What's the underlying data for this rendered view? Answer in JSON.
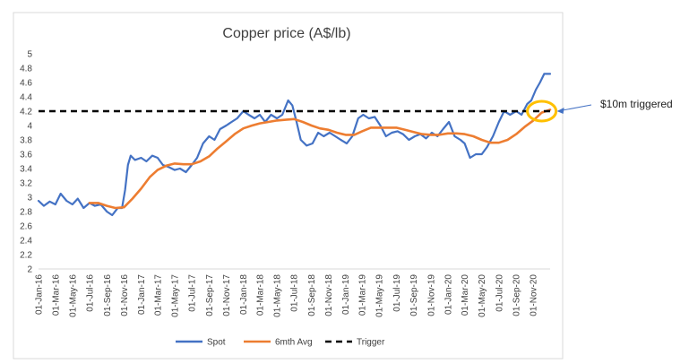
{
  "chart_data": {
    "type": "line",
    "title": "Copper price (A$/lb)",
    "xlabel": "",
    "ylabel": "",
    "ylim": [
      2,
      5
    ],
    "ytick_step": 0.2,
    "y_ticks": [
      "2",
      "2.2",
      "2.4",
      "2.6",
      "2.8",
      "3",
      "3.2",
      "3.4",
      "3.6",
      "3.8",
      "4",
      "4.2",
      "4.4",
      "4.6",
      "4.8",
      "5"
    ],
    "x_ticks": [
      "01-Jan-16",
      "01-Mar-16",
      "01-May-16",
      "01-Jul-16",
      "01-Sep-16",
      "01-Nov-16",
      "01-Jan-17",
      "01-Mar-17",
      "01-May-17",
      "01-Jul-17",
      "01-Sep-17",
      "01-Nov-17",
      "01-Jan-18",
      "01-Mar-18",
      "01-May-18",
      "01-Jul-18",
      "01-Sep-18",
      "01-Nov-18",
      "01-Jan-19",
      "01-Mar-19",
      "01-May-19",
      "01-Jul-19",
      "01-Sep-19",
      "01-Nov-19",
      "01-Jan-20",
      "01-Mar-20",
      "01-May-20",
      "01-Jul-20",
      "01-Sep-20",
      "01-Nov-20"
    ],
    "x_range": [
      "2016-01-01",
      "2020-12-31"
    ],
    "grid": false,
    "legend_position": "bottom",
    "series": [
      {
        "name": "Spot",
        "color": "#4472C4",
        "style": "solid",
        "points": [
          [
            "2016-01-01",
            2.95
          ],
          [
            "2016-01-20",
            2.88
          ],
          [
            "2016-02-10",
            2.94
          ],
          [
            "2016-03-01",
            2.9
          ],
          [
            "2016-03-20",
            3.05
          ],
          [
            "2016-04-10",
            2.95
          ],
          [
            "2016-05-01",
            2.9
          ],
          [
            "2016-05-20",
            2.98
          ],
          [
            "2016-06-10",
            2.85
          ],
          [
            "2016-07-01",
            2.92
          ],
          [
            "2016-07-20",
            2.88
          ],
          [
            "2016-08-10",
            2.9
          ],
          [
            "2016-09-01",
            2.8
          ],
          [
            "2016-09-20",
            2.75
          ],
          [
            "2016-10-10",
            2.85
          ],
          [
            "2016-10-25",
            2.85
          ],
          [
            "2016-11-05",
            3.1
          ],
          [
            "2016-11-15",
            3.45
          ],
          [
            "2016-11-25",
            3.58
          ],
          [
            "2016-12-10",
            3.52
          ],
          [
            "2017-01-01",
            3.55
          ],
          [
            "2017-01-20",
            3.5
          ],
          [
            "2017-02-10",
            3.58
          ],
          [
            "2017-03-01",
            3.55
          ],
          [
            "2017-03-20",
            3.45
          ],
          [
            "2017-04-10",
            3.42
          ],
          [
            "2017-05-01",
            3.38
          ],
          [
            "2017-05-20",
            3.4
          ],
          [
            "2017-06-10",
            3.35
          ],
          [
            "2017-07-01",
            3.45
          ],
          [
            "2017-07-20",
            3.55
          ],
          [
            "2017-08-10",
            3.75
          ],
          [
            "2017-09-01",
            3.85
          ],
          [
            "2017-09-20",
            3.8
          ],
          [
            "2017-10-10",
            3.95
          ],
          [
            "2017-11-01",
            4.0
          ],
          [
            "2017-11-20",
            4.05
          ],
          [
            "2017-12-10",
            4.1
          ],
          [
            "2018-01-01",
            4.2
          ],
          [
            "2018-01-20",
            4.15
          ],
          [
            "2018-02-10",
            4.1
          ],
          [
            "2018-03-01",
            4.15
          ],
          [
            "2018-03-20",
            4.05
          ],
          [
            "2018-04-10",
            4.15
          ],
          [
            "2018-05-01",
            4.1
          ],
          [
            "2018-05-20",
            4.15
          ],
          [
            "2018-06-10",
            4.35
          ],
          [
            "2018-06-25",
            4.28
          ],
          [
            "2018-07-10",
            4.05
          ],
          [
            "2018-07-25",
            3.8
          ],
          [
            "2018-08-15",
            3.72
          ],
          [
            "2018-09-05",
            3.75
          ],
          [
            "2018-09-25",
            3.9
          ],
          [
            "2018-10-15",
            3.85
          ],
          [
            "2018-11-05",
            3.9
          ],
          [
            "2018-11-25",
            3.85
          ],
          [
            "2018-12-15",
            3.8
          ],
          [
            "2019-01-05",
            3.75
          ],
          [
            "2019-01-25",
            3.85
          ],
          [
            "2019-02-15",
            4.1
          ],
          [
            "2019-03-05",
            4.15
          ],
          [
            "2019-03-25",
            4.1
          ],
          [
            "2019-04-15",
            4.12
          ],
          [
            "2019-05-05",
            4.0
          ],
          [
            "2019-05-25",
            3.85
          ],
          [
            "2019-06-15",
            3.9
          ],
          [
            "2019-07-05",
            3.92
          ],
          [
            "2019-07-25",
            3.88
          ],
          [
            "2019-08-15",
            3.8
          ],
          [
            "2019-09-05",
            3.85
          ],
          [
            "2019-09-25",
            3.88
          ],
          [
            "2019-10-15",
            3.82
          ],
          [
            "2019-11-05",
            3.9
          ],
          [
            "2019-11-25",
            3.85
          ],
          [
            "2019-12-15",
            3.95
          ],
          [
            "2020-01-05",
            4.05
          ],
          [
            "2020-01-25",
            3.85
          ],
          [
            "2020-02-15",
            3.8
          ],
          [
            "2020-03-01",
            3.75
          ],
          [
            "2020-03-20",
            3.55
          ],
          [
            "2020-04-10",
            3.6
          ],
          [
            "2020-05-01",
            3.6
          ],
          [
            "2020-05-20",
            3.7
          ],
          [
            "2020-06-10",
            3.85
          ],
          [
            "2020-07-01",
            4.05
          ],
          [
            "2020-07-20",
            4.2
          ],
          [
            "2020-08-10",
            4.15
          ],
          [
            "2020-09-01",
            4.2
          ],
          [
            "2020-09-20",
            4.15
          ],
          [
            "2020-10-10",
            4.3
          ],
          [
            "2020-10-25",
            4.35
          ],
          [
            "2020-11-10",
            4.5
          ],
          [
            "2020-11-25",
            4.6
          ],
          [
            "2020-12-10",
            4.72
          ],
          [
            "2020-12-31",
            4.72
          ]
        ]
      },
      {
        "name": "6mth Avg",
        "color": "#ED7D31",
        "style": "solid",
        "points": [
          [
            "2016-07-01",
            2.92
          ],
          [
            "2016-08-01",
            2.92
          ],
          [
            "2016-09-01",
            2.88
          ],
          [
            "2016-10-01",
            2.85
          ],
          [
            "2016-11-01",
            2.86
          ],
          [
            "2016-12-01",
            2.98
          ],
          [
            "2017-01-01",
            3.12
          ],
          [
            "2017-02-01",
            3.28
          ],
          [
            "2017-03-01",
            3.38
          ],
          [
            "2017-04-01",
            3.44
          ],
          [
            "2017-05-01",
            3.47
          ],
          [
            "2017-06-01",
            3.46
          ],
          [
            "2017-07-01",
            3.46
          ],
          [
            "2017-08-01",
            3.5
          ],
          [
            "2017-09-01",
            3.57
          ],
          [
            "2017-10-01",
            3.68
          ],
          [
            "2017-11-01",
            3.78
          ],
          [
            "2017-12-01",
            3.88
          ],
          [
            "2018-01-01",
            3.96
          ],
          [
            "2018-02-01",
            4.0
          ],
          [
            "2018-03-01",
            4.03
          ],
          [
            "2018-04-01",
            4.05
          ],
          [
            "2018-05-01",
            4.07
          ],
          [
            "2018-06-01",
            4.08
          ],
          [
            "2018-07-01",
            4.09
          ],
          [
            "2018-08-01",
            4.05
          ],
          [
            "2018-09-01",
            4.0
          ],
          [
            "2018-10-01",
            3.96
          ],
          [
            "2018-11-01",
            3.94
          ],
          [
            "2018-12-01",
            3.9
          ],
          [
            "2019-01-01",
            3.87
          ],
          [
            "2019-02-01",
            3.87
          ],
          [
            "2019-03-01",
            3.92
          ],
          [
            "2019-04-01",
            3.97
          ],
          [
            "2019-05-01",
            3.97
          ],
          [
            "2019-06-01",
            3.97
          ],
          [
            "2019-07-01",
            3.97
          ],
          [
            "2019-08-01",
            3.94
          ],
          [
            "2019-09-01",
            3.91
          ],
          [
            "2019-10-01",
            3.88
          ],
          [
            "2019-11-01",
            3.87
          ],
          [
            "2019-12-01",
            3.87
          ],
          [
            "2020-01-01",
            3.89
          ],
          [
            "2020-02-01",
            3.89
          ],
          [
            "2020-03-01",
            3.88
          ],
          [
            "2020-04-01",
            3.85
          ],
          [
            "2020-05-01",
            3.8
          ],
          [
            "2020-06-01",
            3.76
          ],
          [
            "2020-07-01",
            3.76
          ],
          [
            "2020-08-01",
            3.8
          ],
          [
            "2020-09-01",
            3.88
          ],
          [
            "2020-10-01",
            3.98
          ],
          [
            "2020-11-01",
            4.07
          ],
          [
            "2020-12-01",
            4.18
          ],
          [
            "2020-12-31",
            4.22
          ]
        ]
      },
      {
        "name": "Trigger",
        "color": "#000000",
        "style": "dashed",
        "value": 4.2
      }
    ],
    "annotations": [
      {
        "text": "$10m triggered",
        "target_date": "2020-12-01",
        "target_value": 4.2,
        "marker": "circle",
        "marker_color": "#FFC000"
      }
    ]
  }
}
